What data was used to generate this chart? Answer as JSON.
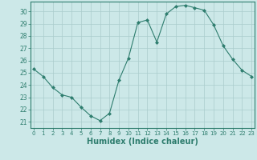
{
  "x": [
    0,
    1,
    2,
    3,
    4,
    5,
    6,
    7,
    8,
    9,
    10,
    11,
    12,
    13,
    14,
    15,
    16,
    17,
    18,
    19,
    20,
    21,
    22,
    23
  ],
  "y": [
    25.3,
    24.7,
    23.8,
    23.2,
    23.0,
    22.2,
    21.5,
    21.1,
    21.7,
    24.4,
    26.2,
    29.1,
    29.3,
    27.5,
    29.8,
    30.4,
    30.5,
    30.3,
    30.1,
    28.9,
    27.2,
    26.1,
    25.2,
    24.7
  ],
  "line_color": "#2e7d6e",
  "marker": "D",
  "marker_size": 2,
  "bg_color": "#cce8e8",
  "grid_color": "#aacccc",
  "axis_color": "#2e7d6e",
  "tick_color": "#2e7d6e",
  "xlabel": "Humidex (Indice chaleur)",
  "xlabel_fontsize": 7,
  "ylabel_ticks": [
    21,
    22,
    23,
    24,
    25,
    26,
    27,
    28,
    29,
    30
  ],
  "xticks": [
    0,
    1,
    2,
    3,
    4,
    5,
    6,
    7,
    8,
    9,
    10,
    11,
    12,
    13,
    14,
    15,
    16,
    17,
    18,
    19,
    20,
    21,
    22,
    23
  ],
  "xlim": [
    -0.3,
    23.3
  ],
  "ylim": [
    20.5,
    30.8
  ]
}
